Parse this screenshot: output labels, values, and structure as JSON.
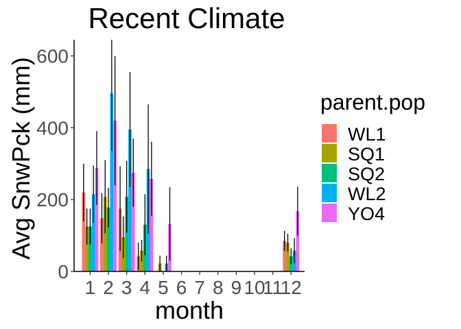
{
  "chart_data": {
    "type": "bar",
    "title": "Recent Climate",
    "xlabel": "month",
    "ylabel": "Avg SnwPck (mm)",
    "categories": [
      "1",
      "2",
      "3",
      "4",
      "5",
      "6",
      "7",
      "8",
      "9",
      "10",
      "11",
      "12"
    ],
    "ylim": [
      0,
      645
    ],
    "yticks": [
      0,
      200,
      400,
      600
    ],
    "grid": false,
    "legend_title": "parent.pop",
    "legend_position": "right",
    "series": [
      {
        "name": "WL1",
        "color": "#F8766D",
        "values": [
          220,
          148,
          175,
          42,
          0,
          0,
          0,
          0,
          0,
          0,
          0,
          85
        ],
        "error": [
          80,
          70,
          118,
          38,
          0,
          0,
          0,
          0,
          0,
          0,
          0,
          28
        ]
      },
      {
        "name": "SQ1",
        "color": "#A3A500",
        "values": [
          125,
          208,
          95,
          58,
          22,
          0,
          0,
          0,
          0,
          0,
          0,
          80
        ],
        "error": [
          50,
          102,
          58,
          30,
          22,
          0,
          0,
          0,
          0,
          0,
          0,
          25
        ]
      },
      {
        "name": "SQ2",
        "color": "#00BF7D",
        "values": [
          125,
          178,
          208,
          130,
          0,
          0,
          0,
          0,
          0,
          0,
          0,
          42
        ],
        "error": [
          50,
          55,
          100,
          85,
          0,
          0,
          0,
          0,
          0,
          0,
          0,
          22
        ]
      },
      {
        "name": "WL2",
        "color": "#00B0F6",
        "values": [
          215,
          495,
          395,
          285,
          22,
          0,
          0,
          0,
          0,
          0,
          0,
          58
        ],
        "error": [
          80,
          160,
          160,
          180,
          22,
          0,
          0,
          0,
          0,
          0,
          0,
          35
        ]
      },
      {
        "name": "YO4",
        "color": "#E76BF3",
        "values": [
          288,
          420,
          275,
          258,
          132,
          0,
          0,
          0,
          0,
          0,
          0,
          168
        ],
        "error": [
          103,
          180,
          95,
          103,
          102,
          0,
          0,
          0,
          0,
          0,
          0,
          68
        ]
      }
    ]
  }
}
